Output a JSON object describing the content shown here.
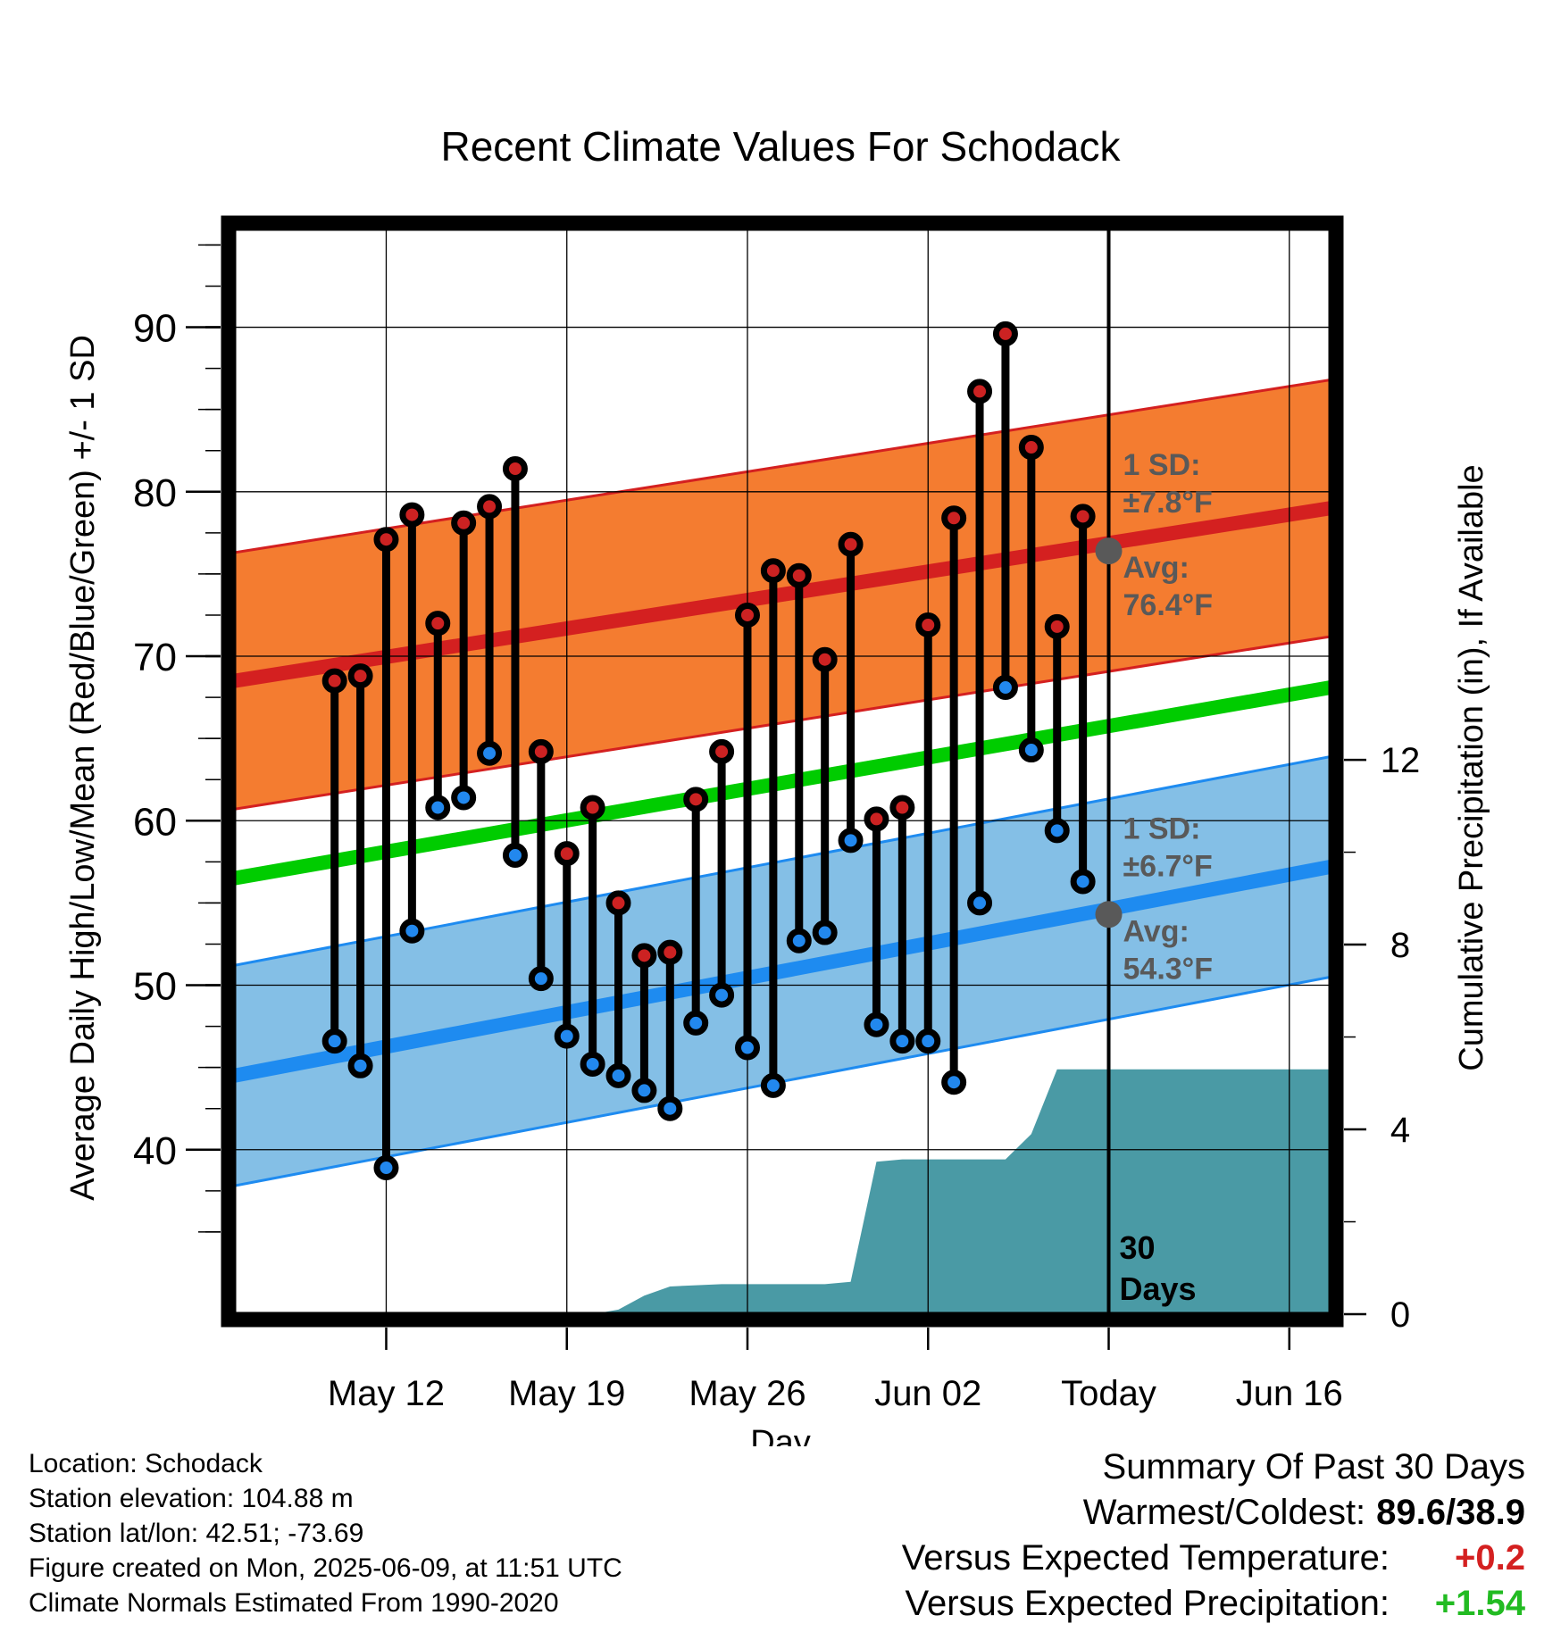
{
  "chart_data": {
    "type": "climate-range",
    "title": "Recent Climate Values For Schodack",
    "xlabel": "Day",
    "ylabel": "Average Daily High/Low/Mean (Red/Blue/Green) +/- 1 SD",
    "y2label": "Cumulative Precipitation (in), If Available",
    "ylim": [
      30,
      96
    ],
    "y2lim": [
      0,
      23.5
    ],
    "yticks": [
      40,
      50,
      60,
      70,
      80,
      90
    ],
    "y2ticks": [
      0,
      4,
      8,
      12
    ],
    "xlim_days": [
      -33.9,
      8.6
    ],
    "xticks": [
      {
        "day": -28,
        "label": "May 12"
      },
      {
        "day": -21,
        "label": "May 19"
      },
      {
        "day": -14,
        "label": "May 26"
      },
      {
        "day": -7,
        "label": "Jun 02"
      },
      {
        "day": 0,
        "label": "Today"
      },
      {
        "day": 7,
        "label": "Jun 16"
      }
    ],
    "today_day": 0,
    "today_label_line1": "30",
    "today_label_line2": "Days",
    "normals": {
      "high_avg": {
        "start": 68.5,
        "end": 79.0
      },
      "high_sd": 7.8,
      "low_avg": {
        "start": 44.5,
        "end": 57.2
      },
      "low_sd": 6.7,
      "mean_avg": {
        "start": 56.5,
        "end": 68.1
      }
    },
    "high_annotation": {
      "sd_label": "1 SD:",
      "sd_value": "±7.8°F",
      "avg_label": "Avg:",
      "avg_value": "76.4°F",
      "avg": 76.4
    },
    "low_annotation": {
      "sd_label": "1 SD:",
      "sd_value": "±6.7°F",
      "avg_label": "Avg:",
      "avg_value": "54.3°F",
      "avg": 54.3
    },
    "days": [
      {
        "day": -30,
        "high": 68.5,
        "low": 46.6
      },
      {
        "day": -29,
        "high": 68.8,
        "low": 45.1
      },
      {
        "day": -28,
        "high": 77.1,
        "low": 38.9
      },
      {
        "day": -27,
        "high": 78.6,
        "low": 53.3
      },
      {
        "day": -26,
        "high": 72.0,
        "low": 60.8
      },
      {
        "day": -25,
        "high": 78.1,
        "low": 61.4
      },
      {
        "day": -24,
        "high": 79.1,
        "low": 64.1
      },
      {
        "day": -23,
        "high": 81.4,
        "low": 57.9
      },
      {
        "day": -22,
        "high": 64.2,
        "low": 50.4
      },
      {
        "day": -21,
        "high": 58.0,
        "low": 46.9
      },
      {
        "day": -20,
        "high": 60.8,
        "low": 45.2
      },
      {
        "day": -19,
        "high": 55.0,
        "low": 44.5
      },
      {
        "day": -18,
        "high": 51.8,
        "low": 43.6
      },
      {
        "day": -17,
        "high": 52.0,
        "low": 42.5
      },
      {
        "day": -16,
        "high": 61.3,
        "low": 47.7
      },
      {
        "day": -15,
        "high": 64.2,
        "low": 49.4
      },
      {
        "day": -14,
        "high": 72.5,
        "low": 46.2
      },
      {
        "day": -13,
        "high": 75.2,
        "low": 43.9
      },
      {
        "day": -12,
        "high": 74.9,
        "low": 52.7
      },
      {
        "day": -11,
        "high": 69.8,
        "low": 53.2
      },
      {
        "day": -10,
        "high": 76.8,
        "low": 58.8
      },
      {
        "day": -9,
        "high": 60.1,
        "low": 47.6
      },
      {
        "day": -8,
        "high": 60.8,
        "low": 46.6
      },
      {
        "day": -7,
        "high": 71.9,
        "low": 46.6
      },
      {
        "day": -6,
        "high": 78.4,
        "low": 44.1
      },
      {
        "day": -5,
        "high": 86.1,
        "low": 55.0
      },
      {
        "day": -4,
        "high": 89.6,
        "low": 68.1
      },
      {
        "day": -3,
        "high": 82.7,
        "low": 64.3
      },
      {
        "day": -2,
        "high": 71.8,
        "low": 59.4
      },
      {
        "day": -1,
        "high": 78.5,
        "low": 56.3
      }
    ],
    "precip_cumulative": [
      {
        "day": -33.9,
        "value": 0
      },
      {
        "day": -20.0,
        "value": 0
      },
      {
        "day": -19.0,
        "value": 0.1
      },
      {
        "day": -18.0,
        "value": 0.4
      },
      {
        "day": -17.0,
        "value": 0.6
      },
      {
        "day": -15.0,
        "value": 0.65
      },
      {
        "day": -11.0,
        "value": 0.65
      },
      {
        "day": -10.0,
        "value": 0.7
      },
      {
        "day": -9.0,
        "value": 3.3
      },
      {
        "day": -8.0,
        "value": 3.35
      },
      {
        "day": -5.0,
        "value": 3.35
      },
      {
        "day": -4.0,
        "value": 3.35
      },
      {
        "day": -3.0,
        "value": 3.9
      },
      {
        "day": -2.0,
        "value": 5.3
      },
      {
        "day": -1.0,
        "value": 5.3
      },
      {
        "day": 8.6,
        "value": 5.3
      }
    ],
    "colors": {
      "high_band": "#f47c30",
      "high_line": "#d42020",
      "low_band": "#84bfe6",
      "low_line": "#1e8bf0",
      "mean_line": "#00cc00",
      "precip": "#4a9aa5",
      "high_dot": "#cc2222",
      "low_dot": "#2288ee",
      "annotation": "#595959"
    }
  },
  "footer": {
    "location": "Location: Schodack",
    "elevation": "Station elevation: 104.88 m",
    "latlon": "Station lat/lon: 42.51; -73.69",
    "created": "Figure created on Mon, 2025-06-09, at 11:51 UTC",
    "normals": "Climate Normals Estimated From 1990-2020"
  },
  "summary": {
    "title": "Summary Of Past 30 Days",
    "warmest_label": "Warmest/Coldest:",
    "warmest_value": "89.6/38.9",
    "temp_label": "Versus Expected Temperature:",
    "temp_value": "+0.2",
    "temp_color": "#d42020",
    "precip_label": "Versus Expected Precipitation:",
    "precip_value": "+1.54",
    "precip_color": "#22bb22"
  }
}
